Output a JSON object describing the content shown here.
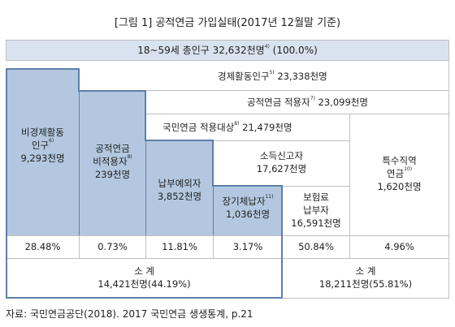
{
  "figure": {
    "title": "[그림 1]  공적연금 가입실태(2017년 12월말 기준)"
  },
  "boxes": {
    "total_population": {
      "label": "18~59세 총인구 32,632천명",
      "note": "4)",
      "pct": "(100.0%)"
    },
    "economically_active": {
      "label": "경제활동인구",
      "note": "5)",
      "value": "23,338천명"
    },
    "pension_covered": {
      "label": "공적연금 적용자",
      "note": "7)",
      "value": "23,099천명"
    },
    "nps_covered": {
      "label": "국민연금 적용대상",
      "note": "8)",
      "value": "21,479천명"
    },
    "non_economically_active": {
      "line1": "비경제활동",
      "line2": "인구",
      "note": "6)",
      "value": "9,293천명"
    },
    "not_covered": {
      "line1": "공적연금",
      "line2": "비적용자",
      "note": "8)",
      "value": "239천명"
    },
    "payment_exception": {
      "label": "납부예외자",
      "value": "3,852천명"
    },
    "long_term_delinquent": {
      "label": "장기체납자",
      "note": "11)",
      "value": "1,036천명"
    },
    "income_reporters": {
      "label": "소득신고자",
      "value": "17,627천명"
    },
    "insurance_payers": {
      "line1": "보험료",
      "line2": "납부자",
      "value": "16,591천명"
    },
    "special_occupation": {
      "line1": "특수직역",
      "line2": "연금",
      "note": "10)",
      "value": "1,620천명"
    }
  },
  "percentages": [
    "28.48%",
    "0.73%",
    "11.81%",
    "3.17%",
    "50.84%",
    "4.96%"
  ],
  "subtotals": {
    "left": {
      "label": "소 계",
      "value": "14,421천명(44.19%)"
    },
    "right": {
      "label": "소 계",
      "value": "18,211천명(55.81%)"
    }
  },
  "source": "자료: 국민연금공단(2018). 2017 국민연금 생생통계, p.21",
  "colors": {
    "blue_fill": "#b3c8e0",
    "blue_border": "#5f7fa8",
    "header_fill": "#d9e3f0",
    "grid_line": "#bfbfbf"
  }
}
